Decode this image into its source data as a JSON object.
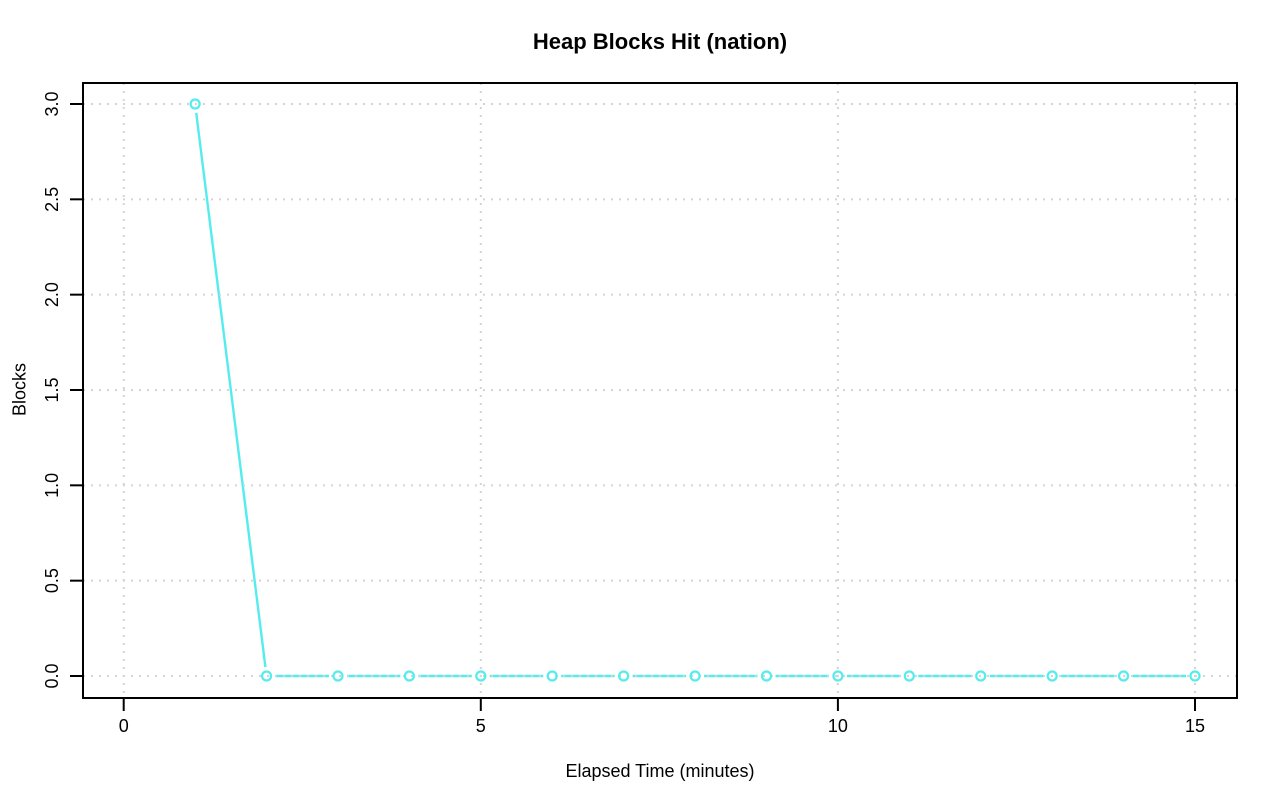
{
  "chart_data": {
    "type": "line",
    "title": "Heap Blocks Hit (nation)",
    "xlabel": "Elapsed Time (minutes)",
    "ylabel": "Blocks",
    "x": [
      1,
      2,
      3,
      4,
      5,
      6,
      7,
      8,
      9,
      10,
      11,
      12,
      13,
      14,
      15
    ],
    "y": [
      3,
      0,
      0,
      0,
      0,
      0,
      0,
      0,
      0,
      0,
      0,
      0,
      0,
      0,
      0
    ],
    "xlim": [
      0,
      15
    ],
    "ylim": [
      0,
      3
    ],
    "x_tick_values": [
      0,
      5,
      10,
      15
    ],
    "x_tick_labels": [
      "0",
      "5",
      "10",
      "15"
    ],
    "y_tick_values": [
      0,
      0.5,
      1,
      1.5,
      2,
      2.5,
      3
    ],
    "y_tick_labels": [
      "0.0",
      "0.5",
      "1.0",
      "1.5",
      "2.0",
      "2.5",
      "3.0"
    ],
    "grid": "dotted",
    "legend": "none",
    "marker": "open-circle",
    "colors": {
      "line": "#55ECEC",
      "grid": "#D4D4D4",
      "axis": "#000000",
      "text": "#000000",
      "background": "#FFFFFF"
    }
  }
}
